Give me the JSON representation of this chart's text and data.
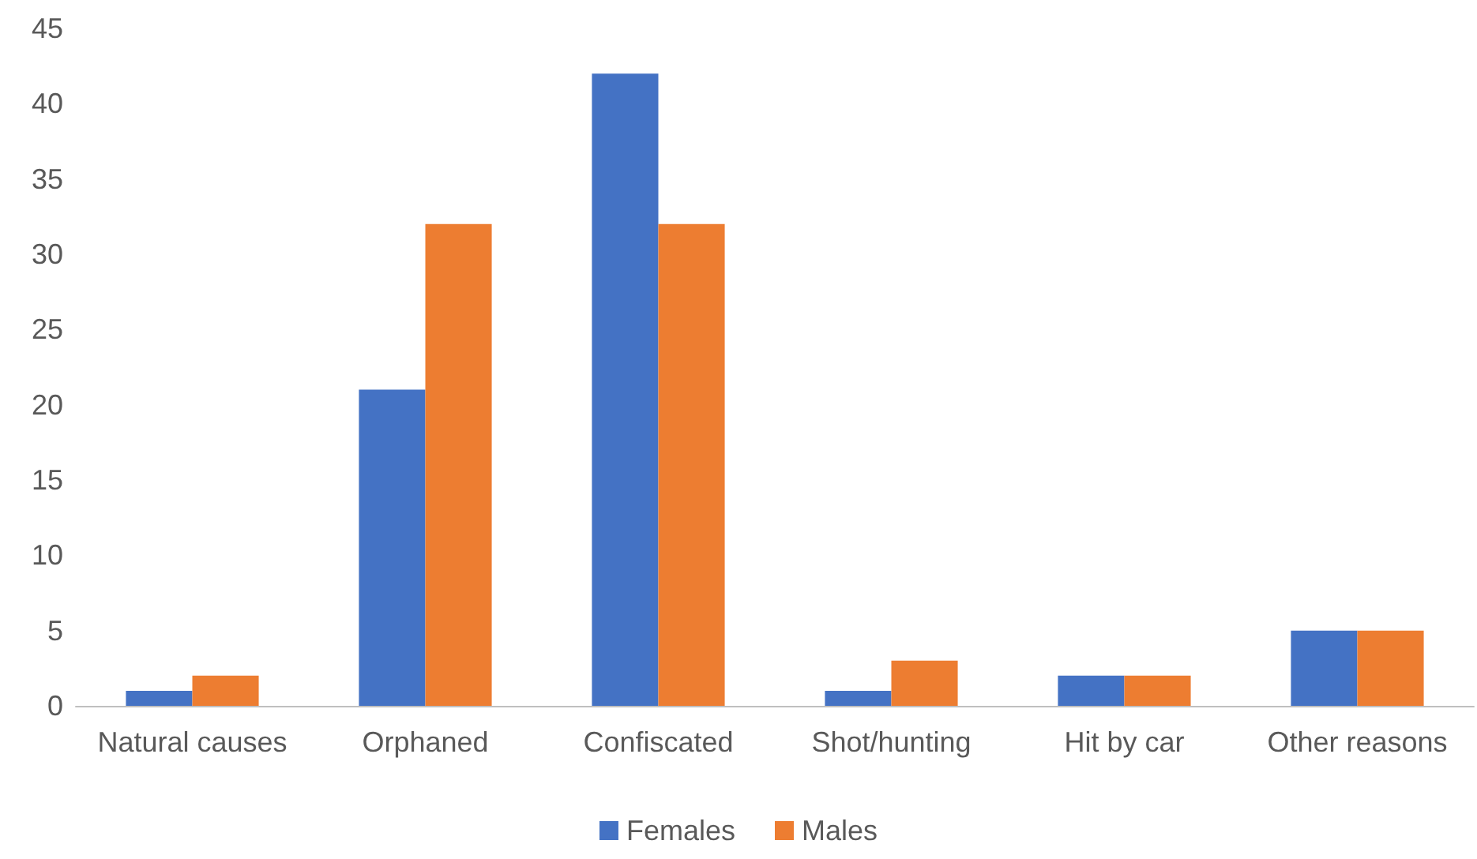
{
  "chart_data": {
    "type": "bar",
    "categories": [
      "Natural causes",
      "Orphaned",
      "Confiscated",
      "Shot/hunting",
      "Hit by car",
      "Other reasons"
    ],
    "series": [
      {
        "name": "Females",
        "color": "#4472c4",
        "values": [
          1,
          21,
          42,
          1,
          2,
          5
        ]
      },
      {
        "name": "Males",
        "color": "#ed7d31",
        "values": [
          2,
          32,
          32,
          3,
          2,
          5
        ]
      }
    ],
    "ylim": [
      0,
      45
    ],
    "yticks": [
      0,
      5,
      10,
      15,
      20,
      25,
      30,
      35,
      40,
      45
    ],
    "grid": false,
    "legend": "bottom"
  }
}
